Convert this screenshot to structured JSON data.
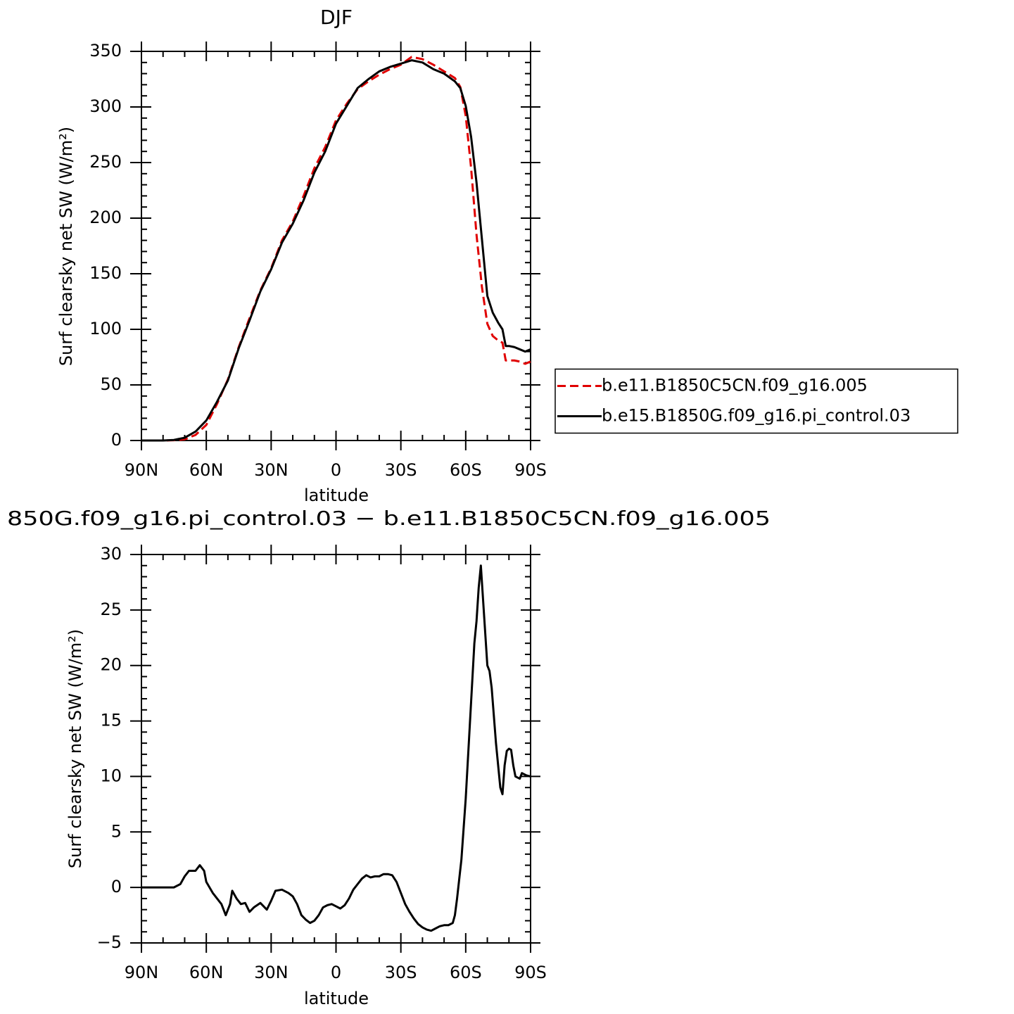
{
  "chart_data": [
    {
      "type": "line",
      "title": "DJF",
      "xlabel": "latitude",
      "ylabel": "Surf clearsky net SW (W/m²)",
      "xlim": [
        90,
        -90
      ],
      "ylim": [
        0,
        350
      ],
      "xticks": [
        {
          "value": 90,
          "label": "90N"
        },
        {
          "value": 60,
          "label": "60N"
        },
        {
          "value": 30,
          "label": "30N"
        },
        0,
        {
          "value": -30,
          "label": "30S"
        },
        {
          "value": -60,
          "label": "60S"
        },
        {
          "value": -90,
          "label": "90S"
        }
      ],
      "yticks": [
        0,
        50,
        100,
        150,
        200,
        250,
        300,
        350
      ],
      "xminorticks": [
        80,
        70,
        50,
        40,
        20,
        10,
        -10,
        -20,
        -40,
        -50,
        -70,
        -80
      ],
      "yminorticks": [
        10,
        20,
        30,
        40,
        60,
        70,
        80,
        90,
        110,
        120,
        130,
        140,
        160,
        170,
        180,
        190,
        210,
        220,
        230,
        240,
        260,
        270,
        280,
        290,
        310,
        320,
        330,
        340
      ],
      "legend": "right",
      "x": [
        90,
        85,
        80,
        75,
        70,
        65,
        60,
        55,
        50,
        45,
        40,
        35,
        30,
        25,
        20,
        15,
        10,
        5,
        0,
        -5,
        -10,
        -15,
        -20,
        -25,
        -30,
        -35,
        -40,
        -45,
        -50,
        -55,
        -57.5,
        -60,
        -62.5,
        -65,
        -67.5,
        -70,
        -72.5,
        -75,
        -77,
        -78.5,
        -80,
        -82.5,
        -85,
        -87.5,
        -90
      ],
      "series": [
        {
          "name": "b.e11.B1850C5CN.f09_g16.005",
          "color": "#e00000",
          "dashed": true,
          "values": [
            0,
            0,
            0,
            0.2,
            1,
            5,
            14,
            33,
            55,
            84,
            110,
            135,
            155,
            180,
            197,
            220,
            245,
            264,
            288,
            303,
            316,
            323,
            329,
            334,
            338,
            345,
            343,
            338,
            332,
            326,
            318,
            292,
            245,
            185,
            138,
            105,
            94,
            90,
            88,
            72,
            72,
            72,
            71,
            69,
            71
          ]
        },
        {
          "name": "b.e15.B1850G.f09_g16.pi_control.03",
          "color": "#000000",
          "dashed": false,
          "values": [
            0,
            0,
            0,
            0.5,
            2.5,
            8,
            18,
            35,
            54,
            83,
            108,
            134,
            154,
            178,
            195,
            216,
            241,
            260,
            285,
            301,
            317,
            325,
            332,
            336,
            339,
            342,
            340,
            334,
            330,
            323,
            317,
            301,
            273,
            232,
            181,
            130,
            115,
            106,
            100,
            85,
            85,
            84,
            82,
            80,
            82
          ]
        }
      ]
    },
    {
      "type": "line",
      "title": "850G.f09_g16.pi_control.03 − b.e11.B1850C5CN.f09_g16.005",
      "xlabel": "latitude",
      "ylabel": "Surf clearsky net SW (W/m²)",
      "xlim": [
        90,
        -90
      ],
      "ylim": [
        -5,
        30
      ],
      "xticks": [
        {
          "value": 90,
          "label": "90N"
        },
        {
          "value": 60,
          "label": "60N"
        },
        {
          "value": 30,
          "label": "30N"
        },
        0,
        {
          "value": -30,
          "label": "30S"
        },
        {
          "value": -60,
          "label": "60S"
        },
        {
          "value": -90,
          "label": "90S"
        }
      ],
      "yticks": [
        {
          "value": -5,
          "label": "−5"
        },
        0,
        5,
        10,
        15,
        20,
        25,
        30
      ],
      "xminorticks": [
        80,
        70,
        50,
        40,
        20,
        10,
        -10,
        -20,
        -40,
        -50,
        -70,
        -80
      ],
      "yminorticks": [
        -4,
        -3,
        -2,
        -1,
        1,
        2,
        3,
        4,
        6,
        7,
        8,
        9,
        11,
        12,
        13,
        14,
        16,
        17,
        18,
        19,
        21,
        22,
        23,
        24,
        26,
        27,
        28,
        29
      ],
      "x": [
        90,
        80,
        75,
        72,
        70,
        68,
        65,
        63,
        61,
        60,
        57,
        55,
        53,
        51,
        49,
        48,
        46,
        44,
        42,
        40,
        38,
        35,
        32,
        30,
        28,
        25,
        22,
        20,
        18,
        16,
        14,
        12,
        10,
        8,
        6,
        4,
        2,
        0,
        -2,
        -4,
        -6,
        -8,
        -10,
        -12,
        -14,
        -16,
        -18,
        -20,
        -22,
        -24,
        -26,
        -28,
        -30,
        -32,
        -34,
        -36,
        -38,
        -40,
        -42,
        -44,
        -46,
        -48,
        -50,
        -52,
        -54,
        -55,
        -56,
        -58,
        -60,
        -62,
        -64,
        -65,
        -66,
        -67,
        -68,
        -70,
        -71,
        -72,
        -74,
        -76,
        -77,
        -78,
        -79,
        -80,
        -81,
        -82,
        -83,
        -85,
        -86,
        -88,
        -90
      ],
      "series": [
        {
          "color": "#000000",
          "dashed": false,
          "values": [
            0,
            0,
            0,
            0.3,
            1,
            1.5,
            1.5,
            2,
            1.5,
            0.5,
            -0.5,
            -1,
            -1.5,
            -2.5,
            -1.5,
            -0.3,
            -1,
            -1.5,
            -1.4,
            -2.2,
            -1.8,
            -1.4,
            -2,
            -1.2,
            -0.3,
            -0.2,
            -0.5,
            -0.8,
            -1.5,
            -2.5,
            -2.9,
            -3.2,
            -3,
            -2.5,
            -1.8,
            -1.6,
            -1.5,
            -1.7,
            -1.9,
            -1.6,
            -1,
            -0.2,
            0.3,
            0.8,
            1.1,
            0.9,
            1,
            1,
            1.2,
            1.2,
            1.1,
            0.5,
            -0.5,
            -1.5,
            -2.2,
            -2.8,
            -3.3,
            -3.6,
            -3.8,
            -3.9,
            -3.7,
            -3.5,
            -3.4,
            -3.4,
            -3.2,
            -2.5,
            -1,
            2.5,
            8,
            15,
            22,
            24,
            27,
            29,
            26,
            20,
            19.5,
            18,
            13,
            9,
            8.4,
            11,
            12.3,
            12.5,
            12.4,
            11,
            10,
            9.8,
            10.3,
            10.1,
            10
          ]
        }
      ]
    }
  ]
}
